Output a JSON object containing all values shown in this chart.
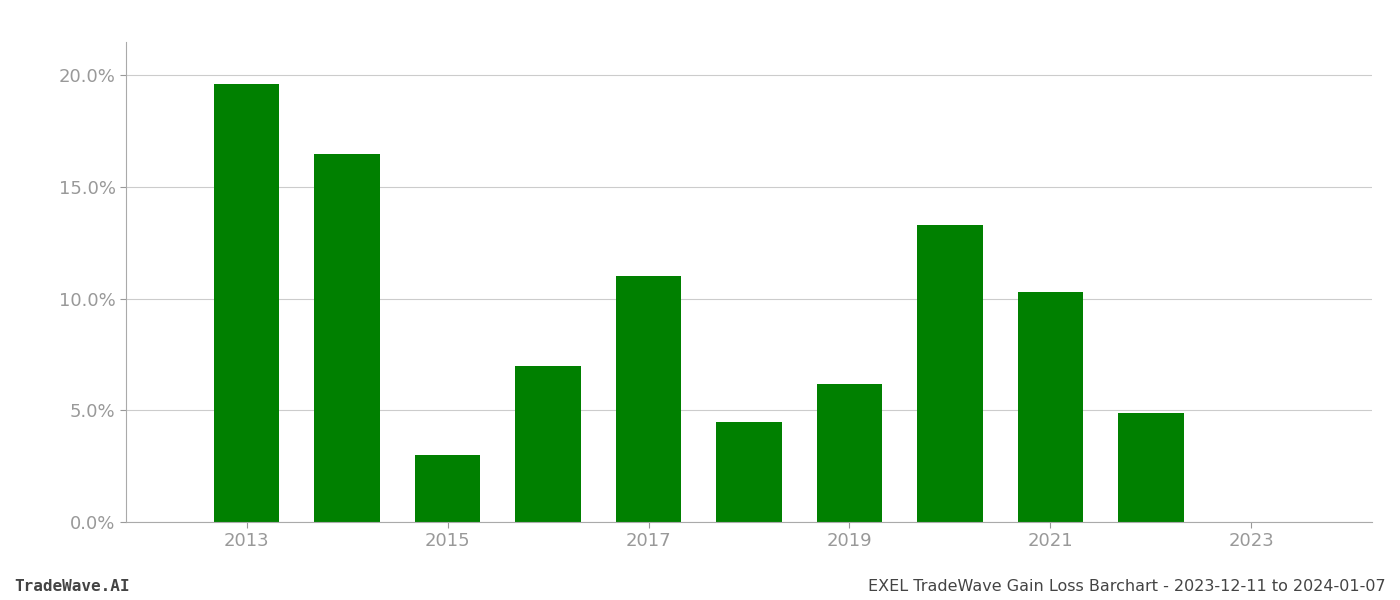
{
  "years": [
    2013,
    2014,
    2015,
    2016,
    2017,
    2018,
    2019,
    2020,
    2021,
    2022,
    2023
  ],
  "values": [
    0.196,
    0.165,
    0.03,
    0.07,
    0.11,
    0.045,
    0.062,
    0.133,
    0.103,
    0.049,
    0.0
  ],
  "bar_color": "#008000",
  "background_color": "#ffffff",
  "ylim": [
    0.0,
    0.215
  ],
  "yticks": [
    0.0,
    0.05,
    0.1,
    0.15,
    0.2
  ],
  "ytick_labels": [
    "0.0%",
    "5.0%",
    "10.0%",
    "15.0%",
    "20.0%"
  ],
  "xtick_labels": [
    "2013",
    "2015",
    "2017",
    "2019",
    "2021",
    "2023"
  ],
  "xticks": [
    2013,
    2015,
    2017,
    2019,
    2021,
    2023
  ],
  "xlim": [
    2011.8,
    2024.2
  ],
  "footer_left": "TradeWave.AI",
  "footer_right": "EXEL TradeWave Gain Loss Barchart - 2023-12-11 to 2024-01-07",
  "grid_color": "#cccccc",
  "spine_color": "#aaaaaa",
  "tick_label_color": "#999999",
  "footer_color": "#444444",
  "bar_width": 0.65,
  "tick_fontsize": 13,
  "footer_fontsize": 11.5
}
